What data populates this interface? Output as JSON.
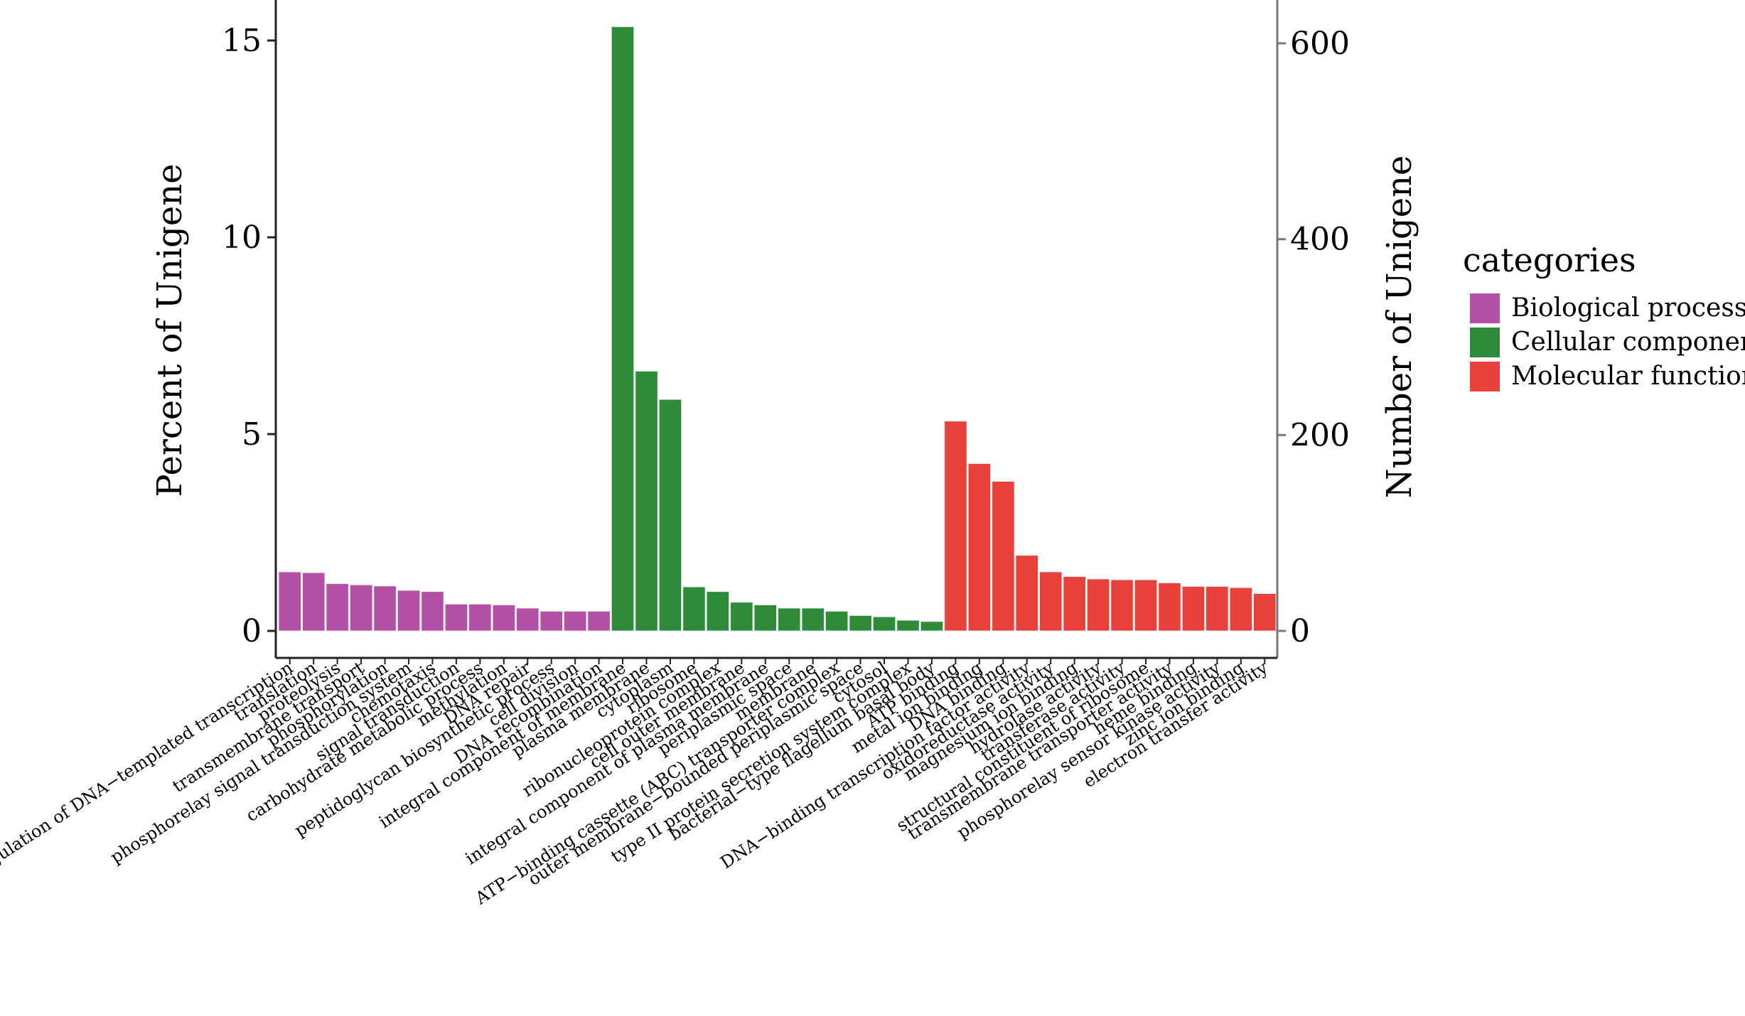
{
  "chart_data": {
    "type": "bar",
    "ylabel_left": "Percent of Unigene",
    "ylabel_right": "Number of Unigene",
    "ylim_left": [
      0,
      15.6
    ],
    "ylim_right": [
      0,
      627
    ],
    "yticks_left": [
      0,
      5,
      10,
      15
    ],
    "yticks_right": [
      0,
      200,
      400,
      600
    ],
    "legend": {
      "title": "categories",
      "position": "right",
      "entries": [
        {
          "name": "Biological process",
          "color": "#B44FA6"
        },
        {
          "name": "Cellular component",
          "color": "#2E8B3A"
        },
        {
          "name": "Molecular function",
          "color": "#E8403A"
        }
      ]
    },
    "categories": [
      "regulation of DNA−templated transcription",
      "translation",
      "proteolysis",
      "transmembrane transport",
      "phosphorylation",
      "phosphorelay signal transduction system",
      "chemotaxis",
      "signal transduction",
      "carbohydrate metabolic process",
      "methylation",
      "DNA repair",
      "peptidoglycan biosynthetic process",
      "cell division",
      "DNA recombination",
      "integral component of membrane",
      "plasma membrane",
      "cytoplasm",
      "ribosome",
      "ribonucleoprotein complex",
      "cell outer membrane",
      "integral component of plasma membrane",
      "periplasmic space",
      "membrane",
      "ATP−binding cassette (ABC) transporter complex",
      "outer membrane−bounded periplasmic space",
      "cytosol",
      "type II protein secretion system complex",
      "bacterial−type flagellum basal body",
      "ATP binding",
      "metal ion binding",
      "DNA binding",
      "DNA−binding transcription factor activity",
      "oxidoreductase activity",
      "magnesium ion binding",
      "hydrolase activity",
      "transferase activity",
      "structural constituent of ribosome",
      "transmembrane transporter activity",
      "heme binding",
      "phosphorelay sensor kinase activity",
      "zinc ion binding",
      "electron transfer activity"
    ],
    "series": [
      {
        "name": "Biological process",
        "color": "#B44FA6",
        "values": [
          1.5,
          1.48,
          1.2,
          1.17,
          1.14,
          1.03,
          1.0,
          0.68,
          0.68,
          0.66,
          0.58,
          0.5,
          0.5,
          0.5,
          null,
          null,
          null,
          null,
          null,
          null,
          null,
          null,
          null,
          null,
          null,
          null,
          null,
          null,
          null,
          null,
          null,
          null,
          null,
          null,
          null,
          null,
          null,
          null,
          null,
          null,
          null,
          null
        ]
      },
      {
        "name": "Cellular component",
        "color": "#2E8B3A",
        "values": [
          null,
          null,
          null,
          null,
          null,
          null,
          null,
          null,
          null,
          null,
          null,
          null,
          null,
          null,
          15.35,
          6.6,
          5.88,
          1.12,
          1.0,
          0.73,
          0.66,
          0.58,
          0.58,
          0.5,
          0.39,
          0.36,
          0.27,
          0.24,
          null,
          null,
          null,
          null,
          null,
          null,
          null,
          null,
          null,
          null,
          null,
          null,
          null,
          null
        ]
      },
      {
        "name": "Molecular function",
        "color": "#E8403A",
        "values": [
          null,
          null,
          null,
          null,
          null,
          null,
          null,
          null,
          null,
          null,
          null,
          null,
          null,
          null,
          null,
          null,
          null,
          null,
          null,
          null,
          null,
          null,
          null,
          null,
          null,
          null,
          null,
          null,
          5.33,
          4.25,
          3.8,
          1.92,
          1.5,
          1.38,
          1.32,
          1.3,
          1.3,
          1.22,
          1.13,
          1.13,
          1.1,
          0.95
        ]
      }
    ]
  }
}
